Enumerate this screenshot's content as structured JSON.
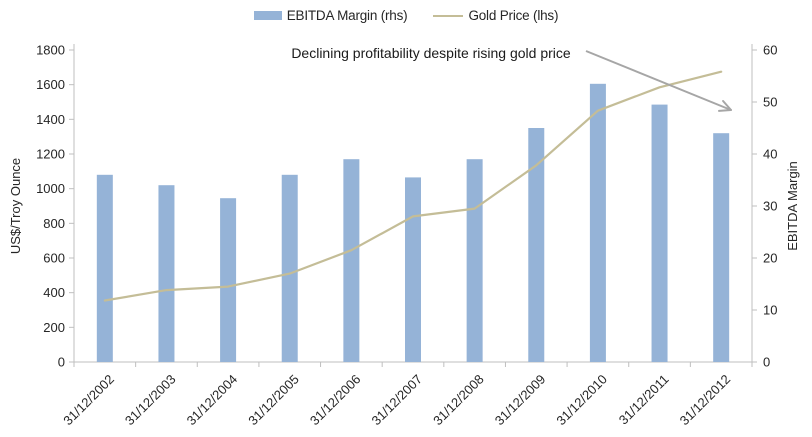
{
  "legend": {
    "bar_item_label": "EBITDA Margin (rhs)",
    "line_item_label": "Gold Price (lhs)"
  },
  "colors": {
    "bar_fill": "#95B3D7",
    "gold_line": "#C4BD97",
    "arrow": "#A6A6A6",
    "axis_line": "#BFBFBF",
    "text": "#262626"
  },
  "chart_data": {
    "type": "bar",
    "subtype": "bar+line combo, dual axis",
    "categories": [
      "31/12/2002",
      "31/12/2003",
      "31/12/2004",
      "31/12/2005",
      "31/12/2006",
      "31/12/2007",
      "31/12/2008",
      "31/12/2009",
      "31/12/2010",
      "31/12/2011",
      "31/12/2012"
    ],
    "series": [
      {
        "name": "EBITDA Margin (rhs)",
        "type": "bar",
        "axis": "right",
        "color": "#95B3D7",
        "values": [
          36,
          34,
          31.5,
          36,
          39,
          35.5,
          39,
          45,
          53.5,
          49.5,
          44
        ]
      },
      {
        "name": "Gold Price (lhs)",
        "type": "line",
        "axis": "left",
        "color": "#C4BD97",
        "values": [
          355,
          415,
          435,
          510,
          645,
          840,
          885,
          1135,
          1450,
          1585,
          1675
        ]
      }
    ],
    "left_axis": {
      "label": "US$/Troy Ounce",
      "min": 0,
      "max": 1800,
      "step": 200,
      "ticks": [
        0,
        200,
        400,
        600,
        800,
        1000,
        1200,
        1400,
        1600,
        1800
      ]
    },
    "right_axis": {
      "label": "EBITDA Margin",
      "min": 0,
      "max": 60,
      "step": 10,
      "ticks": [
        0,
        10,
        20,
        30,
        40,
        50,
        60
      ]
    },
    "annotation": {
      "text": "Declining profitability despite rising gold price"
    },
    "legend_position": "top",
    "grid": false
  }
}
